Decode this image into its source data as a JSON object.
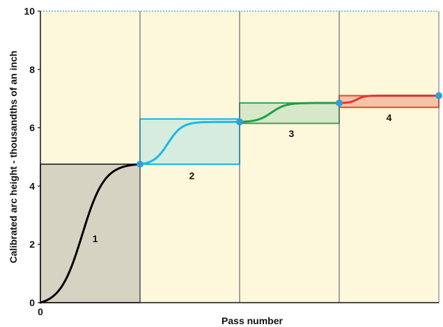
{
  "chart_data": {
    "type": "line",
    "title": "",
    "xlabel": "Pass number",
    "ylabel": "Calibrated arc height - thousandths of an inch",
    "xlim": [
      0,
      4
    ],
    "ylim": [
      0,
      10
    ],
    "x_tick_labels": [
      {
        "value": 0,
        "label": "0"
      }
    ],
    "y_ticks": [
      0,
      2,
      4,
      6,
      8,
      10
    ],
    "panel_color": "#fdf7dc",
    "grid_color": "#6b6b6b",
    "top_line_color": "#5aaad8",
    "stages": [
      {
        "label": "1",
        "x_start": 0,
        "x_end": 1,
        "y_start": 0,
        "y_end": 4.75,
        "box_y": [
          0,
          4.75
        ],
        "box_fill": "#d6d3c3",
        "box_stroke": "#111111",
        "curve_color": "#000000",
        "dot": false,
        "label_pos": {
          "x": 0.55,
          "y": 2.2
        }
      },
      {
        "label": "2",
        "x_start": 1,
        "x_end": 2,
        "y_start": 4.75,
        "y_end": 6.2,
        "box_y": [
          4.75,
          6.3
        ],
        "box_fill": "#d5ecdf",
        "box_stroke": "#12b8e6",
        "curve_color": "#19b9ea",
        "dot": true,
        "label_pos": {
          "x": 1.52,
          "y": 4.35
        }
      },
      {
        "label": "3",
        "x_start": 2,
        "x_end": 3,
        "y_start": 6.2,
        "y_end": 6.85,
        "box_y": [
          6.15,
          6.85
        ],
        "box_fill": "#d6e8c8",
        "box_stroke": "#3aa356",
        "curve_color": "#1e9e4b",
        "dot": true,
        "label_pos": {
          "x": 2.52,
          "y": 5.8
        }
      },
      {
        "label": "4",
        "x_start": 3,
        "x_end": 4,
        "y_start": 6.85,
        "y_end": 7.1,
        "box_y": [
          6.7,
          7.1
        ],
        "box_fill": "#f6c3a6",
        "box_stroke": "#e24a2a",
        "curve_color": "#e2362b",
        "dot": true,
        "label_pos": {
          "x": 3.5,
          "y": 6.35
        }
      }
    ],
    "dot_color": "#2f9fd9"
  }
}
